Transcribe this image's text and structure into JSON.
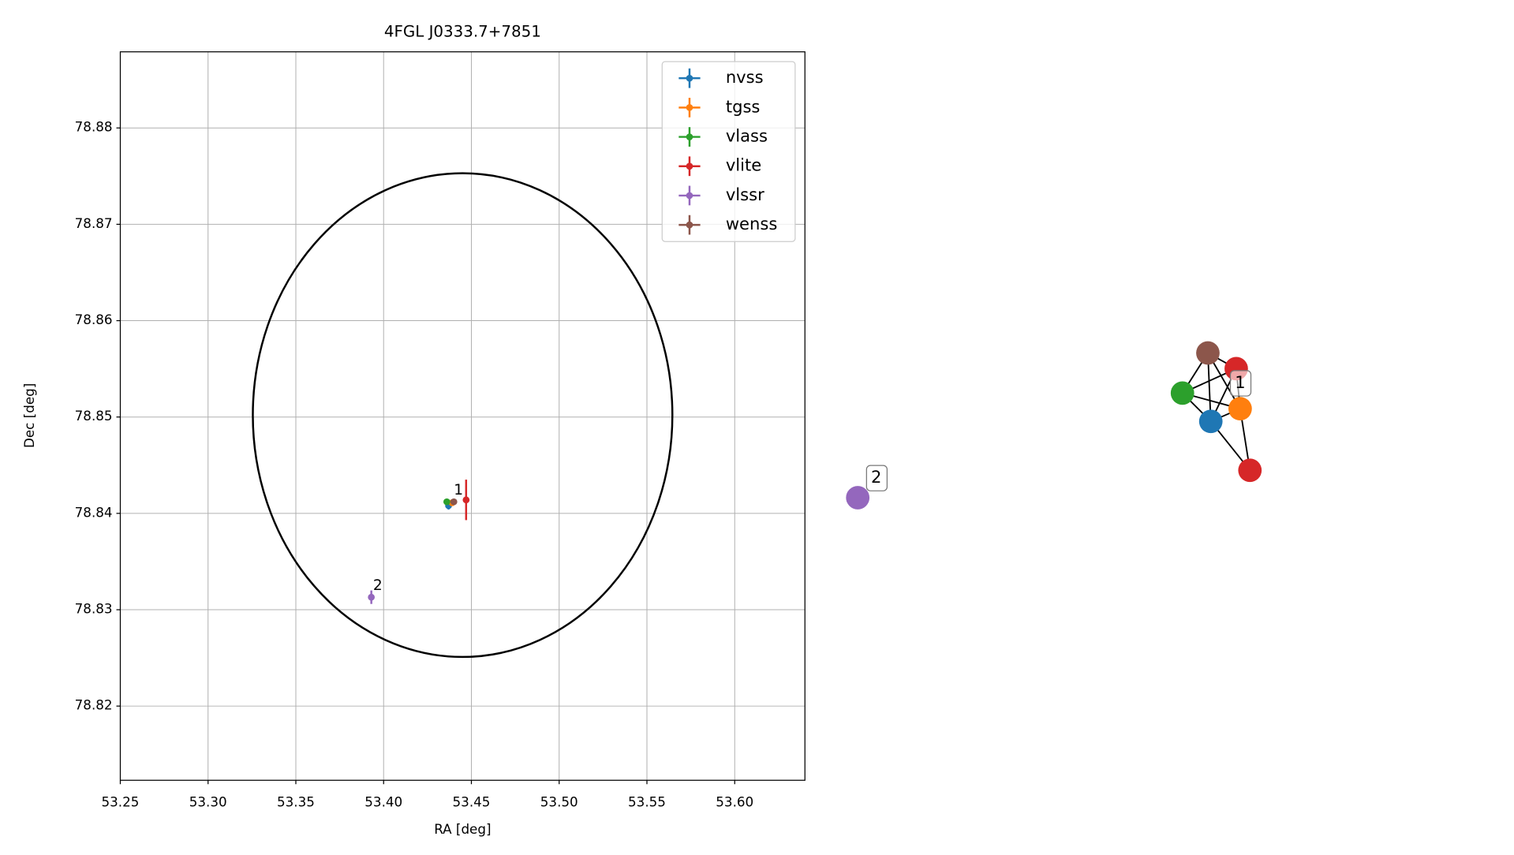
{
  "chart_data": [
    {
      "type": "scatter",
      "title": "4FGL J0333.7+7851",
      "xlabel": "RA [deg]",
      "ylabel": "Dec [deg]",
      "xlim": [
        53.25,
        53.64
      ],
      "ylim": [
        78.8123,
        78.8879
      ],
      "xticks": [
        {
          "value": 53.25,
          "label": "53.25"
        },
        {
          "value": 53.3,
          "label": "53.30"
        },
        {
          "value": 53.35,
          "label": "53.35"
        },
        {
          "value": 53.4,
          "label": "53.40"
        },
        {
          "value": 53.45,
          "label": "53.45"
        },
        {
          "value": 53.5,
          "label": "53.50"
        },
        {
          "value": 53.55,
          "label": "53.55"
        },
        {
          "value": 53.6,
          "label": "53.60"
        }
      ],
      "yticks": [
        78.82,
        78.83,
        78.84,
        78.85,
        78.86,
        78.87,
        78.88
      ],
      "grid": true,
      "legend": "upper right",
      "series": [
        {
          "name": "nvss",
          "color": "#1f77b4",
          "x": [
            53.437
          ],
          "values": [
            78.8408
          ],
          "xerr": [
            0.001
          ],
          "yerr": [
            0.0004
          ]
        },
        {
          "name": "tgss",
          "color": "#ff7f0e",
          "x": [
            53.439
          ],
          "values": [
            78.8411
          ],
          "xerr": [
            0.001
          ],
          "yerr": [
            0.0003
          ]
        },
        {
          "name": "vlass",
          "color": "#2ca02c",
          "x": [
            53.436
          ],
          "values": [
            78.8412
          ],
          "xerr": [
            0.0005
          ],
          "yerr": [
            0.0002
          ]
        },
        {
          "name": "vlite",
          "color": "#d62728",
          "x": [
            53.447
          ],
          "values": [
            78.8414
          ],
          "xerr": [
            0.001
          ],
          "yerr": [
            0.0021
          ]
        },
        {
          "name": "vlssr",
          "color": "#9467bd",
          "x": [
            53.393
          ],
          "values": [
            78.8313
          ],
          "xerr": [
            0.001
          ],
          "yerr": [
            0.0007
          ]
        },
        {
          "name": "wenss",
          "color": "#8c564b",
          "x": [
            53.44
          ],
          "values": [
            78.8412
          ],
          "xerr": [
            0.001
          ],
          "yerr": [
            0.0003
          ]
        }
      ],
      "ellipse": {
        "center_x": 53.445,
        "center_y": 78.8502,
        "semi_x": 0.1195,
        "semi_y": 0.0251
      },
      "annotations": [
        {
          "text": "1",
          "x": 53.44,
          "y": 78.8424
        },
        {
          "text": "2",
          "x": 53.394,
          "y": 78.8325
        }
      ]
    },
    {
      "type": "network",
      "node_colors": [
        "#8c564b",
        "#d62728",
        "#2ca02c",
        "#1f77b4",
        "#ff7f0e",
        "#d62728",
        "#9467bd"
      ],
      "cluster_labels": [
        "1",
        "2"
      ]
    }
  ]
}
